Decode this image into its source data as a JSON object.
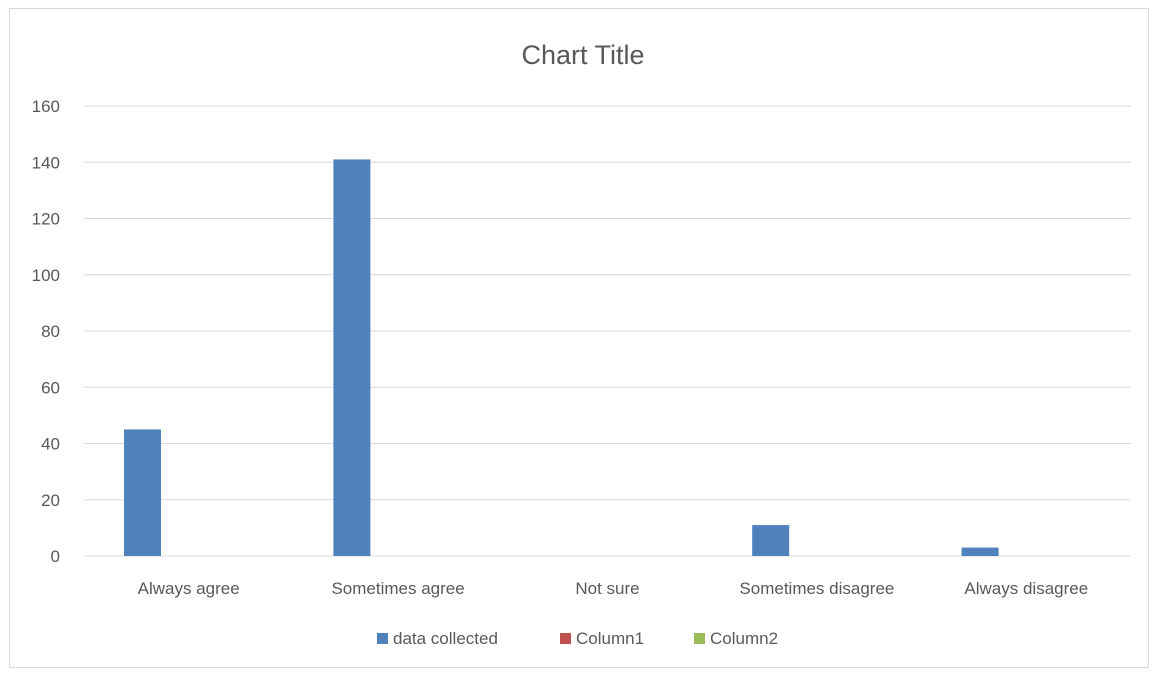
{
  "chart_data": {
    "type": "bar",
    "title": "Chart Title",
    "categories": [
      "Always agree",
      "Sometimes agree",
      "Not sure",
      "Sometimes disagree",
      "Always disagree"
    ],
    "series": [
      {
        "name": "data collected",
        "color": "#4f81bd",
        "values": [
          45,
          141,
          0,
          11,
          3
        ]
      },
      {
        "name": "Column1",
        "color": "#c0504d",
        "values": [
          null,
          null,
          null,
          null,
          null
        ]
      },
      {
        "name": "Column2",
        "color": "#9bbb59",
        "values": [
          null,
          null,
          null,
          null,
          null
        ]
      }
    ],
    "yticks": [
      "0",
      "20",
      "40",
      "60",
      "80",
      "100",
      "120",
      "140",
      "160"
    ],
    "ylim": [
      0,
      160
    ],
    "grid": true,
    "legend_position": "bottom",
    "gridline_color": "#d9d9d9"
  }
}
